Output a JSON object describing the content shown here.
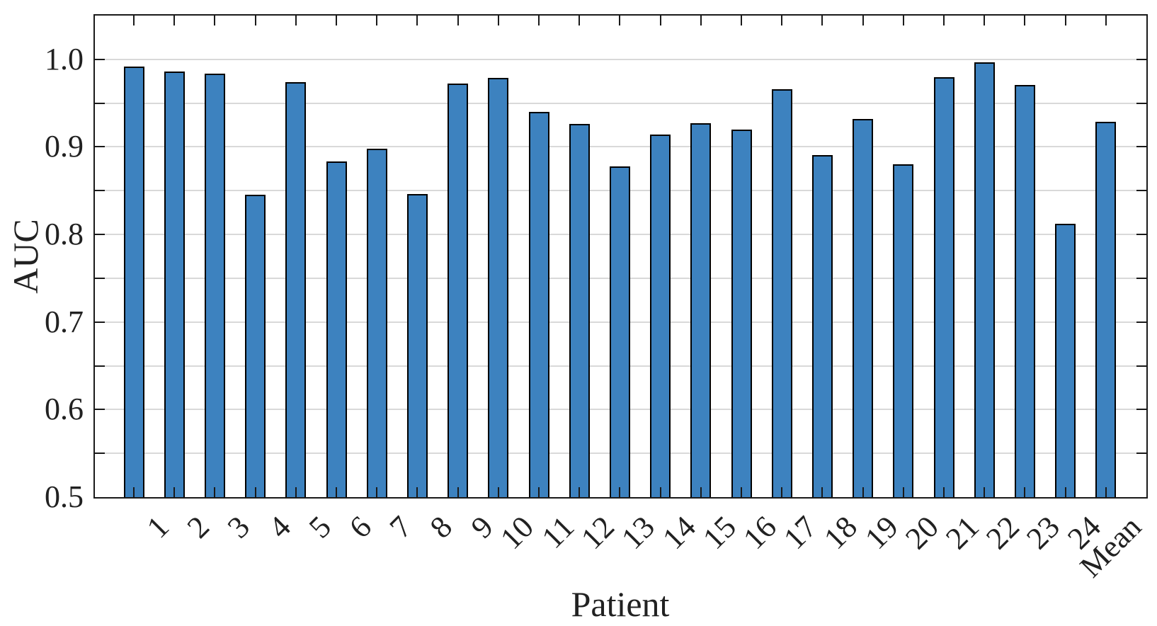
{
  "chart_data": {
    "type": "bar",
    "title": "",
    "xlabel": "Patient",
    "ylabel": "AUC",
    "categories": [
      "1",
      "2",
      "3",
      "4",
      "5",
      "6",
      "7",
      "8",
      "9",
      "10",
      "11",
      "12",
      "13",
      "14",
      "15",
      "16",
      "17",
      "18",
      "19",
      "20",
      "21",
      "22",
      "23",
      "24",
      "Mean"
    ],
    "values": [
      0.992,
      0.986,
      0.984,
      0.845,
      0.974,
      0.883,
      0.898,
      0.846,
      0.972,
      0.979,
      0.94,
      0.926,
      0.878,
      0.914,
      0.927,
      0.92,
      0.966,
      0.891,
      0.932,
      0.88,
      0.98,
      0.997,
      0.971,
      0.812,
      0.929
    ],
    "ylim": [
      0.5,
      1.05
    ],
    "ytick_values": [
      0.5,
      0.6,
      0.7,
      0.8,
      0.9,
      1.0
    ],
    "ytick_labels": [
      "0.5",
      "0.6",
      "0.7",
      "0.8",
      "0.9",
      "1.0"
    ],
    "minor_tick_step": 0.05,
    "grid": "horizontal, every 0.05",
    "legend": "none",
    "box": "full frame with inward ticks on all four spines",
    "x_tick_label_rotation_deg": 45,
    "bar_color": "#3D82BF",
    "bar_edge_color": "#000000",
    "grid_color": "#D9D9D9",
    "axis_color": "#1A1A1A",
    "text_color": "#212121",
    "background_color": "#FFFFFF"
  }
}
